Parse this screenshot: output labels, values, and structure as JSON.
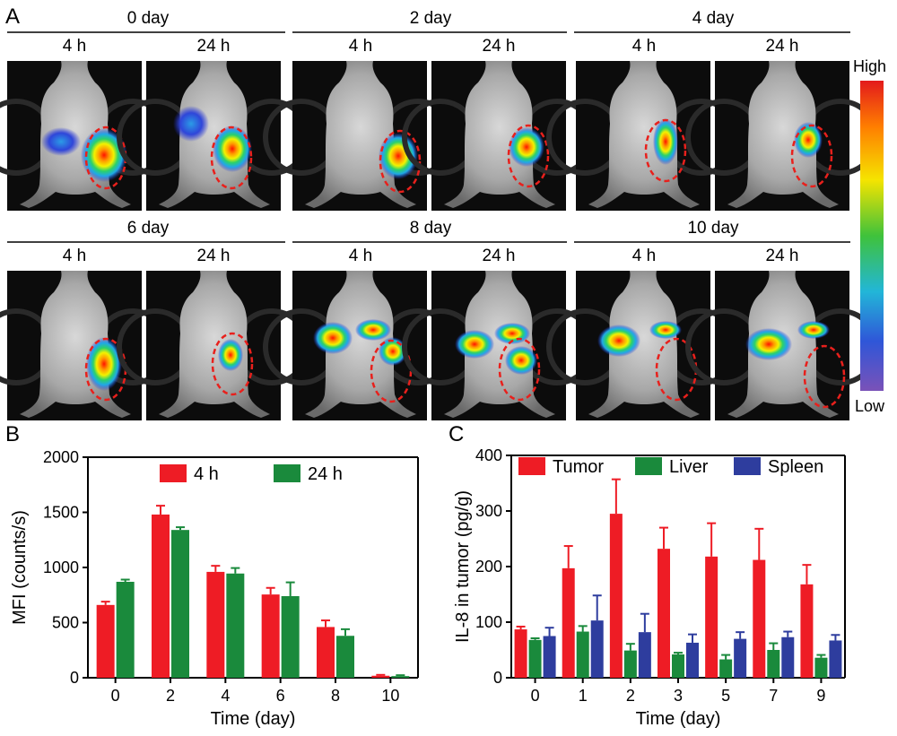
{
  "panel_letters": {
    "a": "A",
    "b": "B",
    "c": "C"
  },
  "imaging": {
    "days": [
      "0 day",
      "2 day",
      "4 day",
      "6 day",
      "8 day",
      "10 day"
    ],
    "time_labels": [
      "4 h",
      "24 h"
    ],
    "colorbar": {
      "high": "High",
      "low": "Low"
    },
    "colors": {
      "tumor_outline": "#e8201c",
      "background": "#0c0c0c"
    }
  },
  "chart_data": [
    {
      "type": "bar",
      "panel": "B",
      "xlabel": "Time (day)",
      "ylabel": "MFI (counts/s)",
      "ylim": [
        0,
        2000
      ],
      "yticks": [
        "0",
        "500",
        "1000",
        "1500",
        "2000"
      ],
      "categories": [
        "0",
        "2",
        "4",
        "6",
        "8",
        "10"
      ],
      "legend_position": "top",
      "series": [
        {
          "name": "4 h",
          "color": "#ee1c25",
          "values": [
            660,
            1480,
            960,
            755,
            460,
            18
          ],
          "errors": [
            30,
            80,
            55,
            60,
            60,
            8
          ]
        },
        {
          "name": "24 h",
          "color": "#1a8a3c",
          "values": [
            870,
            1340,
            945,
            740,
            380,
            15
          ],
          "errors": [
            20,
            25,
            50,
            125,
            60,
            8
          ]
        }
      ]
    },
    {
      "type": "bar",
      "panel": "C",
      "xlabel": "Time (day)",
      "ylabel": "IL-8 in tumor (pg/g)",
      "ylim": [
        0,
        400
      ],
      "yticks": [
        "0",
        "100",
        "200",
        "300",
        "400"
      ],
      "categories": [
        "0",
        "1",
        "2",
        "3",
        "5",
        "7",
        "9"
      ],
      "legend_position": "top",
      "series": [
        {
          "name": "Tumor",
          "color": "#ee1c25",
          "values": [
            87,
            197,
            295,
            232,
            218,
            212,
            168
          ],
          "errors": [
            5,
            40,
            62,
            38,
            60,
            56,
            35
          ]
        },
        {
          "name": "Liver",
          "color": "#1a8a3c",
          "values": [
            68,
            83,
            49,
            42,
            33,
            50,
            36
          ],
          "errors": [
            3,
            10,
            12,
            3,
            8,
            12,
            5
          ]
        },
        {
          "name": "Spleen",
          "color": "#2e3d9e",
          "values": [
            75,
            103,
            82,
            63,
            70,
            73,
            67
          ],
          "errors": [
            15,
            45,
            33,
            15,
            12,
            10,
            10
          ]
        }
      ]
    }
  ]
}
